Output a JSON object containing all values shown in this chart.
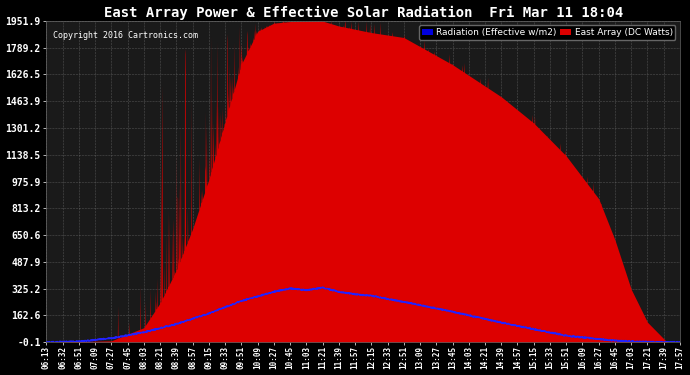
{
  "title": "East Array Power & Effective Solar Radiation  Fri Mar 11 18:04",
  "copyright": "Copyright 2016 Cartronics.com",
  "legend_radiation": "Radiation (Effective w/m2)",
  "legend_east": "East Array (DC Watts)",
  "legend_radiation_bg": "#0000dd",
  "legend_east_bg": "#dd0000",
  "background_color": "#000000",
  "plot_bg_color": "#1a1a1a",
  "grid_color": "#888888",
  "title_color": "#ffffff",
  "text_color": "#ffffff",
  "ytick_labels": [
    "-0.1",
    "162.6",
    "325.2",
    "487.9",
    "650.6",
    "813.2",
    "975.9",
    "1138.5",
    "1301.2",
    "1463.9",
    "1626.5",
    "1789.2",
    "1951.9"
  ],
  "ytick_values": [
    -0.1,
    162.6,
    325.2,
    487.9,
    650.6,
    813.2,
    975.9,
    1138.5,
    1301.2,
    1463.9,
    1626.5,
    1789.2,
    1951.9
  ],
  "ylim": [
    -0.1,
    1951.9
  ],
  "xtick_labels": [
    "06:13",
    "06:32",
    "06:51",
    "07:09",
    "07:27",
    "07:45",
    "08:03",
    "08:21",
    "08:39",
    "08:57",
    "09:15",
    "09:33",
    "09:51",
    "10:09",
    "10:27",
    "10:45",
    "11:03",
    "11:21",
    "11:39",
    "11:57",
    "12:15",
    "12:33",
    "12:51",
    "13:09",
    "13:27",
    "13:45",
    "14:03",
    "14:21",
    "14:39",
    "14:57",
    "15:15",
    "15:33",
    "15:51",
    "16:09",
    "16:27",
    "16:45",
    "17:03",
    "17:21",
    "17:39",
    "17:57"
  ],
  "red_fill_color": "#dd0000",
  "blue_line_color": "#2222ff",
  "figwidth": 6.9,
  "figheight": 3.75,
  "dpi": 100
}
